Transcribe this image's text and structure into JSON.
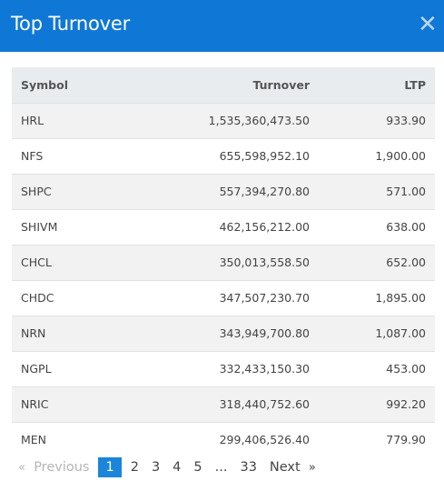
{
  "modal": {
    "title": "Top Turnover",
    "close_symbol": "✕"
  },
  "table": {
    "headers": {
      "symbol": "Symbol",
      "turnover": "Turnover",
      "ltp": "LTP"
    },
    "rows": [
      {
        "symbol": "HRL",
        "turnover": "1,535,360,473.50",
        "ltp": "933.90"
      },
      {
        "symbol": "NFS",
        "turnover": "655,598,952.10",
        "ltp": "1,900.00"
      },
      {
        "symbol": "SHPC",
        "turnover": "557,394,270.80",
        "ltp": "571.00"
      },
      {
        "symbol": "SHIVM",
        "turnover": "462,156,212.00",
        "ltp": "638.00"
      },
      {
        "symbol": "CHCL",
        "turnover": "350,013,558.50",
        "ltp": "652.00"
      },
      {
        "symbol": "CHDC",
        "turnover": "347,507,230.70",
        "ltp": "1,895.00"
      },
      {
        "symbol": "NRN",
        "turnover": "343,949,700.80",
        "ltp": "1,087.00"
      },
      {
        "symbol": "NGPL",
        "turnover": "332,433,150.30",
        "ltp": "453.00"
      },
      {
        "symbol": "NRIC",
        "turnover": "318,440,752.60",
        "ltp": "992.20"
      },
      {
        "symbol": "MEN",
        "turnover": "299,406,526.40",
        "ltp": "779.90"
      }
    ]
  },
  "pagination": {
    "prev_arrow": "«",
    "prev_label": "Previous",
    "pages": [
      "1",
      "2",
      "3",
      "4",
      "5"
    ],
    "active_page": "1",
    "ellipsis": "...",
    "last_page": "33",
    "next_label": "Next",
    "next_arrow": "»"
  },
  "colors": {
    "header_bg": "#0f78d6",
    "active_page_bg": "#1a85d9",
    "table_head_bg": "#e9ecef",
    "row_stripe": "#f2f2f2"
  }
}
